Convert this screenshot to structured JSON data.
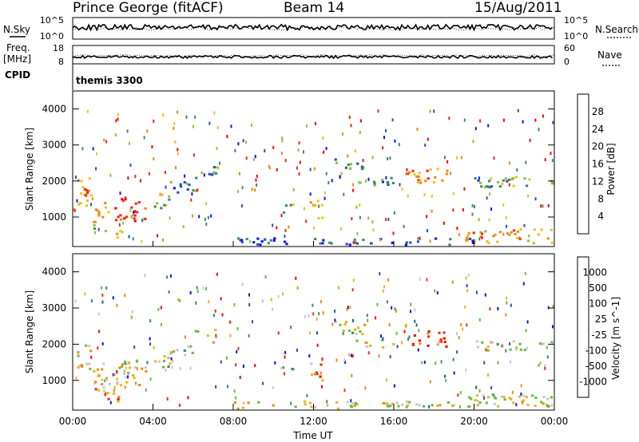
{
  "header": {
    "station": "Prince George (fitACF)",
    "beam": "Beam 14",
    "date": "15/Aug/2011"
  },
  "panels": {
    "nsky": {
      "label": "N.Sky",
      "right_label": "N.Search",
      "left_ticks": [
        "10^5",
        "10^0"
      ],
      "right_ticks": [
        "10^5",
        "10^0"
      ]
    },
    "freq": {
      "label_line1": "Freq.",
      "label_line2": "[MHz]",
      "right_label": "Nave",
      "left_ticks": [
        "18",
        "8"
      ],
      "right_ticks": [
        "60",
        "0"
      ]
    },
    "cpid": {
      "label": "CPID",
      "value": "themis 3300"
    }
  },
  "chart_data": [
    {
      "type": "heatmap",
      "parameter": "power",
      "ylabel": "Slant Range [km]",
      "ylim": [
        180,
        4500
      ],
      "yticks": [
        "1000",
        "2000",
        "3000",
        "4000"
      ],
      "colorbar": {
        "label": "Power [dB]",
        "ticks": [
          "4",
          "8",
          "12",
          "16",
          "20",
          "24",
          "28"
        ],
        "colors": [
          "#1010ff",
          "#2a52b4",
          "#3a8a6a",
          "#90c040",
          "#f0c020",
          "#f08a10",
          "#ee2a10",
          "#ff0000"
        ]
      },
      "patches": [
        {
          "t0": 0.2,
          "t1": 0.9,
          "r0": 1300,
          "r1": 2100,
          "level": 0.7
        },
        {
          "t0": 1.0,
          "t1": 1.8,
          "r0": 700,
          "r1": 1500,
          "level": 0.55
        },
        {
          "t0": 2.0,
          "t1": 3.6,
          "r0": 900,
          "r1": 1600,
          "level": 0.8
        },
        {
          "t0": 1.5,
          "t1": 2.6,
          "r0": 400,
          "r1": 700,
          "level": 0.45
        },
        {
          "t0": 4.0,
          "t1": 4.8,
          "r0": 1200,
          "r1": 1700,
          "level": 0.4
        },
        {
          "t0": 4.6,
          "t1": 6.2,
          "r0": 1700,
          "r1": 2000,
          "level": 0.3
        },
        {
          "t0": 6.0,
          "t1": 7.2,
          "r0": 2050,
          "r1": 2450,
          "level": 0.35
        },
        {
          "t0": 10.2,
          "t1": 11.0,
          "r0": 1150,
          "r1": 1500,
          "level": 0.4
        },
        {
          "t0": 11.8,
          "t1": 12.4,
          "r0": 1000,
          "r1": 1550,
          "level": 0.6
        },
        {
          "t0": 13.0,
          "t1": 14.5,
          "r0": 2300,
          "r1": 2650,
          "level": 0.35
        },
        {
          "t0": 14.0,
          "t1": 16.0,
          "r0": 1900,
          "r1": 2150,
          "level": 0.3
        },
        {
          "t0": 16.6,
          "t1": 18.6,
          "r0": 1950,
          "r1": 2450,
          "level": 0.65
        },
        {
          "t0": 20.0,
          "t1": 24.0,
          "r0": 1850,
          "r1": 2150,
          "level": 0.4
        },
        {
          "t0": 19.5,
          "t1": 24.0,
          "r0": 300,
          "r1": 700,
          "level": 0.6
        },
        {
          "t0": 8.0,
          "t1": 20.0,
          "r0": 200,
          "r1": 450,
          "level": 0.15
        }
      ]
    },
    {
      "type": "heatmap",
      "parameter": "velocity",
      "ylabel": "Slant Range [km]",
      "ylim": [
        180,
        4500
      ],
      "yticks": [
        "1000",
        "2000",
        "3000",
        "4000"
      ],
      "xlabel": "Time UT",
      "xticks": [
        "00:00",
        "04:00",
        "08:00",
        "12:00",
        "16:00",
        "20:00",
        "00:00"
      ],
      "xlim": [
        0,
        24
      ],
      "colorbar": {
        "label": "Velocity  [m s^-1]",
        "ticks": [
          "1000",
          "500",
          "100",
          "25",
          "-25",
          "-100",
          "-500",
          "-1000"
        ],
        "colors": [
          "#1515d0",
          "#2a52b4",
          "#3a8a6a",
          "#60c040",
          "#c8c8c8",
          "#f0b020",
          "#f08a10",
          "#ee3010",
          "#ff0000"
        ]
      },
      "patches": [
        {
          "t0": 0.2,
          "t1": 0.9,
          "r0": 1300,
          "r1": 2100,
          "level": 0.6
        },
        {
          "t0": 1.0,
          "t1": 1.8,
          "r0": 700,
          "r1": 1500,
          "level": 0.7
        },
        {
          "t0": 2.0,
          "t1": 3.6,
          "r0": 900,
          "r1": 1600,
          "level": 0.55
        },
        {
          "t0": 1.5,
          "t1": 2.6,
          "r0": 400,
          "r1": 700,
          "level": 0.72
        },
        {
          "t0": 4.0,
          "t1": 4.8,
          "r0": 1200,
          "r1": 1700,
          "level": 0.5
        },
        {
          "t0": 4.6,
          "t1": 6.2,
          "r0": 1700,
          "r1": 2000,
          "level": 0.5
        },
        {
          "t0": 6.0,
          "t1": 7.2,
          "r0": 2050,
          "r1": 2450,
          "level": 0.5
        },
        {
          "t0": 10.2,
          "t1": 11.0,
          "r0": 1150,
          "r1": 1500,
          "level": 0.3
        },
        {
          "t0": 11.8,
          "t1": 12.4,
          "r0": 1000,
          "r1": 1550,
          "level": 0.75
        },
        {
          "t0": 13.0,
          "t1": 14.5,
          "r0": 2300,
          "r1": 2650,
          "level": 0.5
        },
        {
          "t0": 14.0,
          "t1": 16.0,
          "r0": 1900,
          "r1": 2150,
          "level": 0.5
        },
        {
          "t0": 16.6,
          "t1": 18.6,
          "r0": 1950,
          "r1": 2450,
          "level": 0.9
        },
        {
          "t0": 20.0,
          "t1": 24.0,
          "r0": 1850,
          "r1": 2150,
          "level": 0.5
        },
        {
          "t0": 19.5,
          "t1": 24.0,
          "r0": 300,
          "r1": 700,
          "level": 0.5
        },
        {
          "t0": 8.0,
          "t1": 20.0,
          "r0": 200,
          "r1": 450,
          "level": 0.55
        }
      ]
    }
  ]
}
